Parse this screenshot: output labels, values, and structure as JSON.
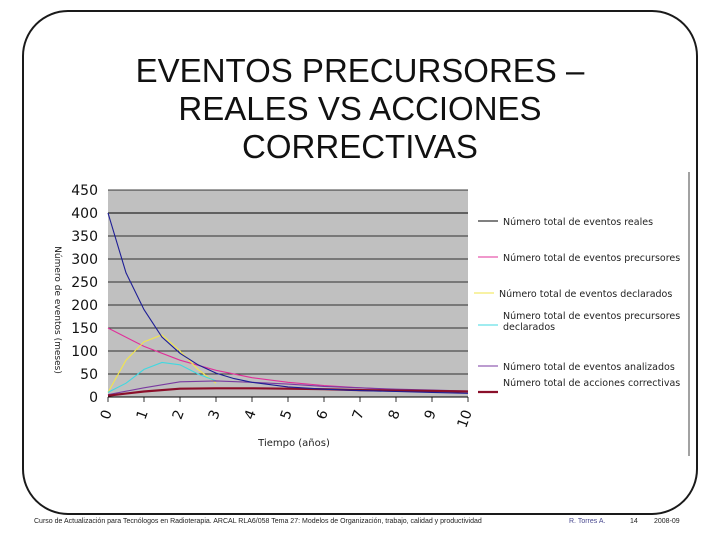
{
  "slide": {
    "title": "EVENTOS PRECURSORES –\nREALES VS ACCIONES\nCORRECTIVAS"
  },
  "footer": {
    "course": "Curso de Actualización para Tecnólogos en Radioterapia. ARCAL RLA6/058 Tema 27: Modelos de Organización, trabajo, calidad y productividad",
    "author": "R. Torres A.",
    "page": "14",
    "date": "2008-09"
  },
  "chart_data": {
    "type": "line",
    "xlabel": "Tiempo (años)",
    "ylabel": "Número de eventos (meses)",
    "xlim": [
      0,
      10
    ],
    "ylim": [
      0,
      450
    ],
    "xticks": [
      "0",
      "1",
      "2",
      "3",
      "4",
      "5",
      "6",
      "7",
      "8",
      "9",
      "10"
    ],
    "yticks": [
      "0",
      "50",
      "100",
      "150",
      "200",
      "250",
      "300",
      "350",
      "400",
      "450"
    ],
    "grid": true,
    "legend_position": "right",
    "plot_background": "#c0c0c0",
    "series": [
      {
        "name": "Número total de eventos reales",
        "color": "#000000",
        "x": [
          0,
          10
        ],
        "y": [
          400,
          400
        ]
      },
      {
        "name": "Número total de eventos precursores",
        "color": "#e0309a",
        "x": [
          0,
          1,
          2,
          3,
          4,
          5,
          6,
          7,
          8,
          9,
          10
        ],
        "y": [
          150,
          110,
          80,
          58,
          42,
          32,
          25,
          20,
          16,
          13,
          11
        ]
      },
      {
        "name": "Número total de eventos declarados",
        "color": "#f2e64a",
        "x": [
          0,
          0.5,
          1,
          1.5,
          2,
          2.5,
          3
        ],
        "y": [
          10,
          80,
          120,
          135,
          100,
          60,
          30
        ]
      },
      {
        "name": "Número total de eventos precursores declarados",
        "color": "#40d8e0",
        "x": [
          0,
          0.5,
          1,
          1.5,
          2,
          2.5,
          3
        ],
        "y": [
          10,
          30,
          60,
          75,
          70,
          50,
          35
        ]
      },
      {
        "name": "Número total de eventos analizados",
        "color": "#7a3aa0",
        "x": [
          0,
          1,
          2,
          3,
          4,
          5,
          6,
          7,
          8,
          9,
          10
        ],
        "y": [
          5,
          20,
          33,
          35,
          32,
          28,
          23,
          20,
          17,
          15,
          13
        ]
      },
      {
        "name": "Número total de acciones correctivas",
        "color": "#8a0f2a",
        "x": [
          0,
          1,
          2,
          3,
          4,
          5,
          6,
          7,
          8,
          9,
          10
        ],
        "y": [
          3,
          12,
          18,
          19,
          19,
          18,
          17,
          15,
          14,
          13,
          12
        ]
      },
      {
        "name": "",
        "color": "#1e1e96",
        "x": [
          0,
          0.5,
          1,
          1.5,
          2,
          2.5,
          3,
          3.5,
          4,
          5,
          6,
          7,
          8,
          9,
          10
        ],
        "y": [
          400,
          270,
          190,
          130,
          95,
          70,
          52,
          40,
          32,
          22,
          17,
          14,
          12,
          10,
          8
        ]
      }
    ]
  }
}
